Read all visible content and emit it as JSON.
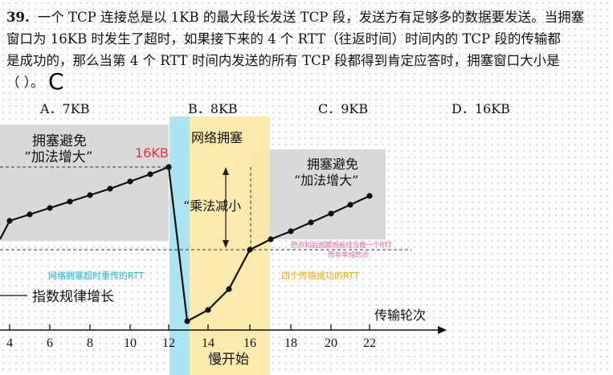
{
  "question": {
    "number": "39.",
    "lines": [
      "一个 TCP 连接总是以 1KB 的最大段长发送 TCP 段，发送方有足够多的数据要发送。当拥塞",
      "窗口为 16KB 时发生了超时，如果接下来的 4 个 RTT（往返时间）时间内的 TCP 段的传输都",
      "是成功的，那么当第 4 个 RTT 时间内发送的所有 TCP 段都得到肯定应答时，拥塞窗口大小是",
      "（    ）。"
    ],
    "handwritten_answer": "C",
    "options": [
      {
        "label": "A．7KB"
      },
      {
        "label": "B．8KB"
      },
      {
        "label": "C．9KB"
      },
      {
        "label": "D．16KB"
      }
    ]
  },
  "diagram": {
    "label_ca_left_1": "拥塞避免",
    "label_ca_left_2": "“加法增大”",
    "label_16kb": "16KB",
    "label_congestion": "网络拥塞",
    "label_mult_decrease": "“乘法减小",
    "label_ca_right_1": "拥塞避免",
    "label_ca_right_2": "“加法增大”",
    "note_line_1": "把点和后面跟的直线当做一个RTT",
    "note_line_2": "而非单纯的点",
    "label_timeout_rtt": "网络拥塞超时重传的RTT",
    "label_four_rtt": "四个传输成功的RTT",
    "label_exponential": "指数规律增长",
    "label_axis": "传输轮次",
    "label_slow_start": "慢开始",
    "x_ticks": [
      "4",
      "6",
      "8",
      "10",
      "12",
      "14",
      "16",
      "18",
      "20",
      "22"
    ],
    "colors": {
      "gray_band": "#d9d9d9",
      "cyan_band": "#a6e3f2",
      "yellow_band": "#fbe9a6",
      "red_label": "#e8343a",
      "pink_note": "#ef5aa3",
      "cyan_text": "#1bb5e0",
      "yellow_text": "#f2a900"
    }
  }
}
